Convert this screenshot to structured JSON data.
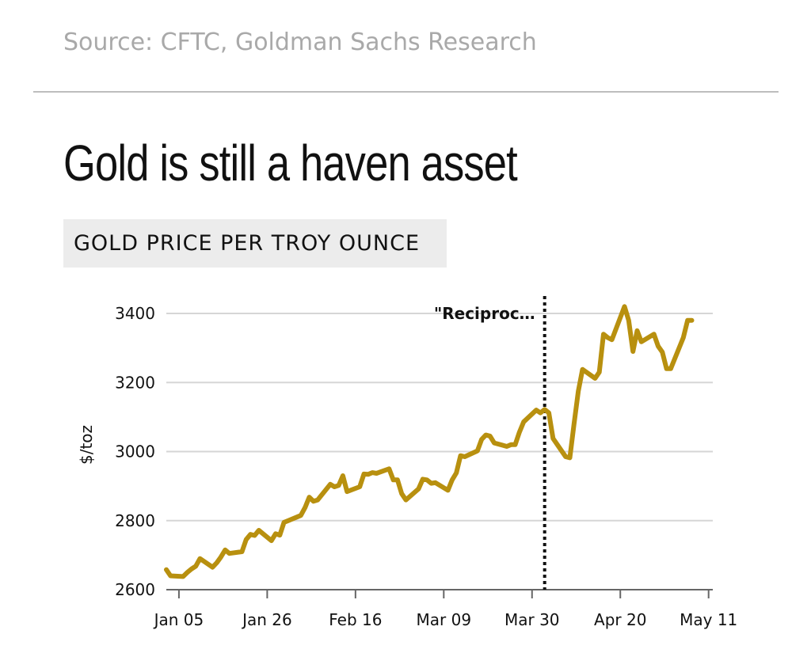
{
  "source": "Source: CFTC, Goldman Sachs Research",
  "headline": "Gold is still a haven asset",
  "subheadline": "GOLD PRICE PER TROY OUNCE",
  "colors": {
    "line": "#b8900f",
    "grid": "#d6d6d6",
    "text": "#111111",
    "source": "#a9a9a9",
    "subhead_bg": "#ececec"
  },
  "chart_data": {
    "type": "line",
    "title": "GOLD PRICE PER TROY OUNCE",
    "xlabel": "",
    "ylabel": "$/toz",
    "ylim": [
      2600,
      3400
    ],
    "yticks": [
      2600,
      2800,
      3000,
      3200,
      3400
    ],
    "grid": "horizontal",
    "xlim": [
      "2025-01-02",
      "2025-05-12"
    ],
    "xticks": [
      {
        "date": "2025-01-05",
        "label": "Jan 05"
      },
      {
        "date": "2025-01-26",
        "label": "Jan 26"
      },
      {
        "date": "2025-02-16",
        "label": "Feb 16"
      },
      {
        "date": "2025-03-09",
        "label": "Mar 09"
      },
      {
        "date": "2025-03-30",
        "label": "Mar 30"
      },
      {
        "date": "2025-04-20",
        "label": "Apr 20"
      },
      {
        "date": "2025-05-11",
        "label": "May 11"
      }
    ],
    "annotations": [
      {
        "date": "2025-04-02",
        "label": "\"Reciproc…",
        "style": "dotted-vertical"
      }
    ],
    "series": [
      {
        "x": [
          "2025-01-02",
          "2025-01-03",
          "2025-01-06",
          "2025-01-07",
          "2025-01-08",
          "2025-01-09",
          "2025-01-10",
          "2025-01-13",
          "2025-01-14",
          "2025-01-15",
          "2025-01-16",
          "2025-01-17",
          "2025-01-20",
          "2025-01-21",
          "2025-01-22",
          "2025-01-23",
          "2025-01-24",
          "2025-01-27",
          "2025-01-28",
          "2025-01-29",
          "2025-01-30",
          "2025-01-31",
          "2025-02-03",
          "2025-02-04",
          "2025-02-05",
          "2025-02-06",
          "2025-02-07",
          "2025-02-10",
          "2025-02-11",
          "2025-02-12",
          "2025-02-13",
          "2025-02-14",
          "2025-02-17",
          "2025-02-18",
          "2025-02-19",
          "2025-02-20",
          "2025-02-21",
          "2025-02-24",
          "2025-02-25",
          "2025-02-26",
          "2025-02-27",
          "2025-02-28",
          "2025-03-03",
          "2025-03-04",
          "2025-03-05",
          "2025-03-06",
          "2025-03-07",
          "2025-03-10",
          "2025-03-11",
          "2025-03-12",
          "2025-03-13",
          "2025-03-14",
          "2025-03-17",
          "2025-03-18",
          "2025-03-19",
          "2025-03-20",
          "2025-03-21",
          "2025-03-24",
          "2025-03-25",
          "2025-03-26",
          "2025-03-27",
          "2025-03-28",
          "2025-03-31",
          "2025-04-01",
          "2025-04-02",
          "2025-04-03",
          "2025-04-04",
          "2025-04-07",
          "2025-04-08",
          "2025-04-09",
          "2025-04-10",
          "2025-04-11",
          "2025-04-14",
          "2025-04-15",
          "2025-04-16",
          "2025-04-17",
          "2025-04-18",
          "2025-04-21",
          "2025-04-22",
          "2025-04-23",
          "2025-04-24",
          "2025-04-25",
          "2025-04-28",
          "2025-04-29",
          "2025-04-30",
          "2025-05-01",
          "2025-05-02",
          "2025-05-05",
          "2025-05-06",
          "2025-05-07"
        ],
        "y": [
          2658,
          2640,
          2638,
          2650,
          2660,
          2668,
          2690,
          2665,
          2678,
          2695,
          2715,
          2705,
          2710,
          2745,
          2760,
          2757,
          2772,
          2742,
          2762,
          2758,
          2795,
          2800,
          2815,
          2838,
          2868,
          2856,
          2860,
          2905,
          2898,
          2902,
          2930,
          2884,
          2898,
          2935,
          2934,
          2939,
          2937,
          2950,
          2918,
          2918,
          2878,
          2860,
          2892,
          2920,
          2918,
          2908,
          2910,
          2888,
          2918,
          2938,
          2988,
          2985,
          3002,
          3035,
          3048,
          3045,
          3025,
          3015,
          3020,
          3020,
          3056,
          3086,
          3120,
          3112,
          3122,
          3112,
          3038,
          2985,
          2982,
          3080,
          3175,
          3238,
          3212,
          3230,
          3340,
          3330,
          3324,
          3420,
          3380,
          3290,
          3350,
          3318,
          3340,
          3305,
          3288,
          3240,
          3240,
          3330,
          3380,
          3380
        ]
      }
    ]
  }
}
